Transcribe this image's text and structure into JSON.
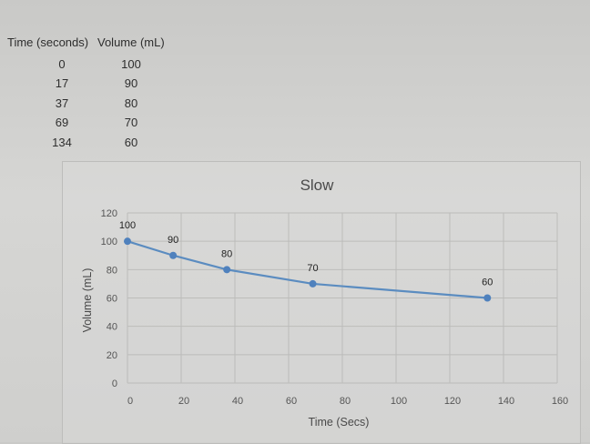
{
  "table": {
    "headers": [
      "Time (seconds)",
      "Volume (mL)"
    ],
    "rows": [
      [
        "0",
        "100"
      ],
      [
        "17",
        "90"
      ],
      [
        "37",
        "80"
      ],
      [
        "69",
        "70"
      ],
      [
        "134",
        "60"
      ]
    ]
  },
  "chart_data": {
    "type": "line",
    "title": "Slow",
    "xlabel": "Time (Secs)",
    "ylabel": "Volume (mL)",
    "x": [
      0,
      17,
      37,
      69,
      134
    ],
    "series": [
      {
        "values": [
          100,
          90,
          80,
          70,
          60
        ],
        "data_labels": [
          "100",
          "90",
          "80",
          "70",
          "60"
        ]
      }
    ],
    "xlim": [
      0,
      160
    ],
    "ylim": [
      0,
      120
    ],
    "x_ticks": [
      0,
      20,
      40,
      60,
      80,
      100,
      120,
      140,
      160
    ],
    "y_ticks": [
      0,
      20,
      40,
      60,
      80,
      100,
      120
    ],
    "grid": true,
    "legend": "none",
    "colors": {
      "line": "#5b8cc0",
      "marker": "#4f81bd",
      "grid": "#bcbcba",
      "axis_text": "#555555"
    }
  }
}
